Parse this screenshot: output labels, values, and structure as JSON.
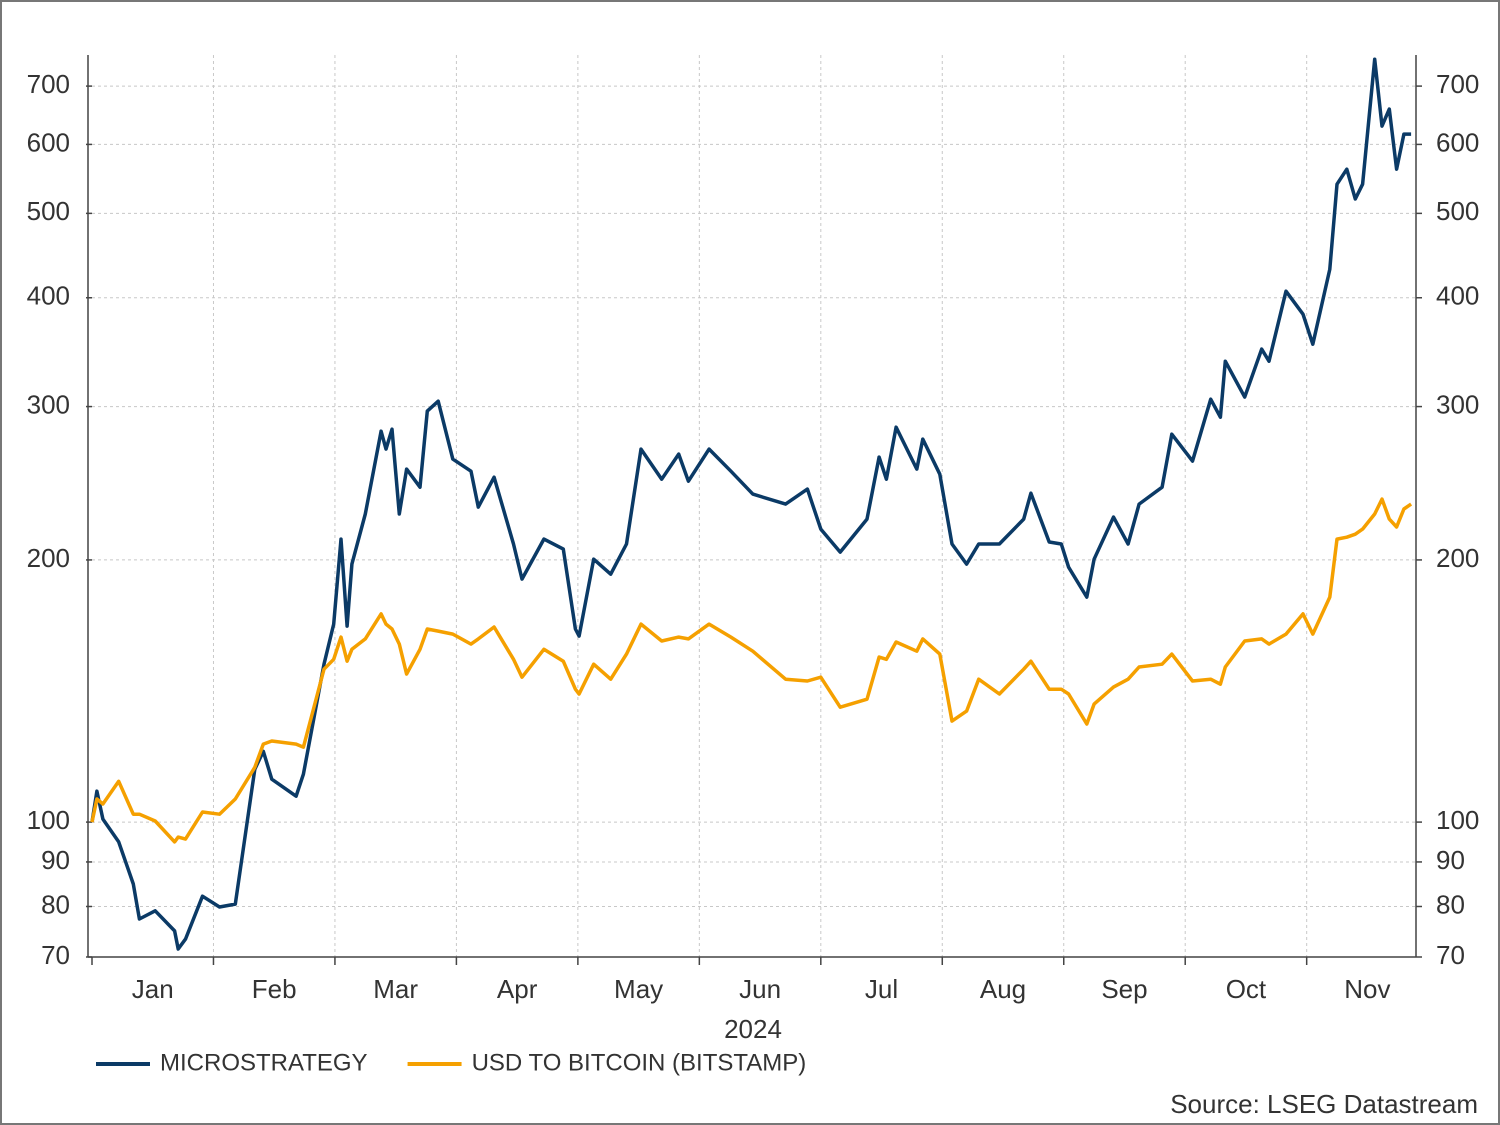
{
  "chart_data": {
    "type": "line",
    "xlabel": "2024",
    "source": "Source: LSEG Datastream",
    "categories": [
      "Jan",
      "Feb",
      "Mar",
      "Apr",
      "May",
      "Jun",
      "Jul",
      "Aug",
      "Sep",
      "Oct",
      "Nov"
    ],
    "x": [
      0,
      0.04,
      0.09,
      0.22,
      0.34,
      0.39,
      0.52,
      0.68,
      0.71,
      0.77,
      0.91,
      1.05,
      1.18,
      1.34,
      1.41,
      1.48,
      1.68,
      1.74,
      1.91,
      1.99,
      2.05,
      2.1,
      2.14,
      2.25,
      2.38,
      2.42,
      2.47,
      2.53,
      2.59,
      2.7,
      2.76,
      2.85,
      2.97,
      3.12,
      3.18,
      3.31,
      3.47,
      3.54,
      3.72,
      3.88,
      3.98,
      4.01,
      4.13,
      4.27,
      4.4,
      4.52,
      4.69,
      4.83,
      4.91,
      5.08,
      5.26,
      5.44,
      5.71,
      5.89,
      6.0,
      6.16,
      6.38,
      6.48,
      6.54,
      6.62,
      6.79,
      6.84,
      6.98,
      7.08,
      7.2,
      7.3,
      7.47,
      7.67,
      7.73,
      7.88,
      7.98,
      8.04,
      8.19,
      8.25,
      8.41,
      8.53,
      8.62,
      8.81,
      8.89,
      9.06,
      9.21,
      9.29,
      9.33,
      9.49,
      9.63,
      9.69,
      9.83,
      9.97,
      10.05,
      10.19,
      10.25,
      10.33,
      10.4,
      10.46,
      10.56,
      10.62,
      10.68,
      10.74,
      10.8,
      10.86
    ],
    "series": [
      {
        "name": "MICROSTRATEGY",
        "color": "#0b3a66",
        "values": [
          100,
          108.5,
          100.8,
          94.9,
          84.9,
          77.4,
          79.1,
          75.0,
          71.5,
          73.4,
          82.2,
          79.9,
          80.5,
          115.0,
          120.6,
          112.0,
          107.1,
          113.5,
          151.8,
          168.8,
          211.3,
          167.9,
          197.8,
          225.8,
          281.1,
          268.1,
          282.6,
          225.8,
          254.3,
          242.4,
          296.4,
          304.3,
          261.1,
          252.9,
          230.0,
          248.9,
          208.6,
          190.1,
          211.3,
          205.8,
          166.6,
          163.5,
          200.4,
          192.6,
          208.6,
          268.1,
          247.6,
          264.6,
          246.3,
          268.1,
          252.9,
          238.0,
          231.8,
          241.2,
          217.0,
          204.2,
          222.8,
          262.5,
          247.6,
          284.1,
          254.3,
          275.3,
          250.9,
          208.6,
          197.8,
          208.6,
          208.6,
          222.8,
          238.6,
          209.7,
          208.6,
          196.2,
          181.3,
          200.4,
          224.0,
          208.6,
          231.8,
          242.4,
          278.9,
          259.7,
          305.9,
          291.7,
          338.2,
          307.6,
          349.2,
          338.2,
          407.0,
          383.0,
          353.8,
          431.4,
          540.1,
          562.0,
          519.3,
          540.1,
          751.6,
          629.8,
          658.7,
          562.0,
          616.6,
          616.6
        ]
      },
      {
        "name": "USD TO BITCOIN (BITSTAMP)",
        "color": "#f5a000",
        "values": [
          100,
          106.3,
          104.9,
          111.4,
          102.1,
          102.1,
          100.3,
          94.9,
          96.1,
          95.6,
          102.7,
          102.1,
          106.3,
          115.6,
          122.9,
          123.9,
          122.9,
          121.9,
          149.8,
          153.8,
          163.1,
          153.0,
          157.9,
          162.3,
          173.4,
          168.8,
          166.6,
          160.1,
          147.9,
          157.9,
          166.6,
          165.7,
          164.4,
          160.1,
          162.3,
          167.5,
          153.8,
          146.7,
          157.9,
          153.0,
          142.1,
          140.3,
          151.8,
          145.9,
          155.9,
          168.8,
          161.4,
          163.1,
          162.3,
          168.8,
          163.1,
          157.1,
          145.9,
          145.2,
          146.7,
          135.5,
          138.4,
          154.7,
          153.8,
          161.0,
          157.1,
          162.3,
          155.9,
          130.6,
          134.1,
          145.9,
          140.3,
          149.8,
          153.0,
          142.1,
          142.1,
          140.3,
          129.6,
          136.6,
          142.9,
          145.9,
          150.7,
          151.8,
          155.9,
          145.2,
          145.9,
          144.0,
          150.7,
          161.4,
          162.3,
          160.1,
          164.4,
          173.4,
          164.4,
          181.3,
          211.3,
          212.4,
          214.1,
          217.0,
          225.8,
          234.9,
          222.8,
          218.2,
          228.8,
          231.8
        ]
      }
    ],
    "xlim": [
      0,
      10.9
    ],
    "ylim": [
      70,
      760
    ],
    "yticks": [
      70,
      80,
      90,
      100,
      200,
      300,
      400,
      500,
      600,
      700
    ],
    "log_scale": true,
    "grid": true,
    "legend": "bottom"
  }
}
